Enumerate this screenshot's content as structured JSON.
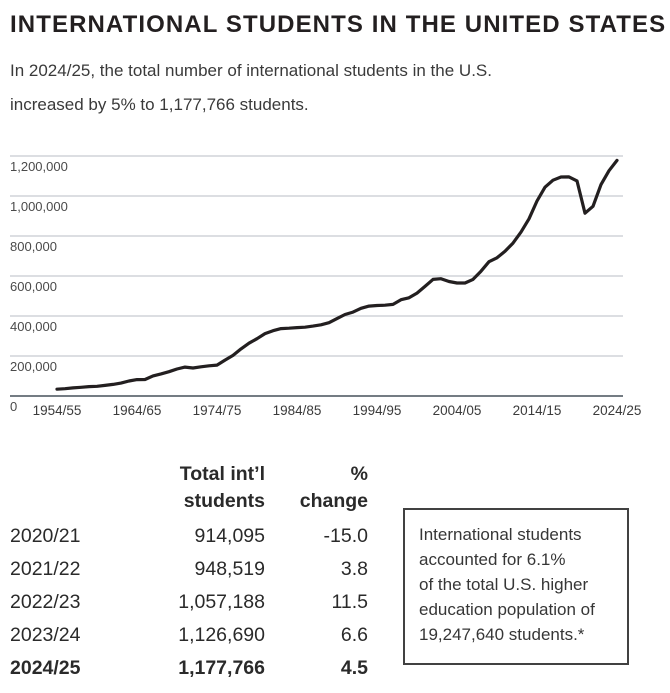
{
  "title": "INTERNATIONAL STUDENTS IN THE UNITED STATES",
  "subtitle": {
    "line1": "In 2024/25, the total number of international students in the U.S.",
    "line2": "increased by 5% to 1,177,766 students."
  },
  "colors": {
    "line": "#231f20",
    "grid": "#c6cbd1",
    "axis": "#47505a",
    "tick": "#4a4a4a",
    "xtick": "#3b3b3b"
  },
  "chart_data": {
    "type": "line",
    "title": "",
    "xlabel": "",
    "ylabel": "",
    "grid": true,
    "legend": false,
    "ylim": [
      0,
      1200000
    ],
    "ytick_interval": 200000,
    "ytick_labels": [
      "0",
      "200,000",
      "400,000",
      "600,000",
      "800,000",
      "1,000,000",
      "1,200,000"
    ],
    "xtick_labels": [
      "1954/55",
      "1964/65",
      "1974/75",
      "1984/85",
      "1994/95",
      "2004/05",
      "2014/15",
      "2024/25"
    ],
    "x_start_year": 1954,
    "x_step_years": 1,
    "series": [
      {
        "name": "Total international students",
        "values": [
          34232,
          36494,
          40666,
          43391,
          47245,
          48486,
          53107,
          58086,
          64705,
          74814,
          82045,
          82709,
          100262,
          110315,
          121362,
          134959,
          144708,
          140126,
          146097,
          151066,
          154580,
          179344,
          203068,
          235509,
          263940,
          286343,
          311882,
          326299,
          336985,
          338894,
          342113,
          343777,
          349609,
          356187,
          366354,
          386851,
          407529,
          419585,
          438618,
          449749,
          452635,
          453787,
          457984,
          481280,
          490933,
          514723,
          547867,
          582996,
          586323,
          572509,
          565039,
          564766,
          582984,
          623805,
          671616,
          690923,
          723277,
          764495,
          819644,
          886052,
          974926,
          1043839,
          1078822,
          1094792,
          1095299,
          1075496,
          914095,
          948519,
          1057188,
          1126690,
          1177766
        ]
      }
    ]
  },
  "table": {
    "headers": {
      "total": [
        "Total int’l",
        "students"
      ],
      "change": [
        "%",
        "change"
      ]
    },
    "rows": [
      {
        "year": "2020/21",
        "total": "914,095",
        "change": "-15.0",
        "bold": false
      },
      {
        "year": "2021/22",
        "total": "948,519",
        "change": "3.8",
        "bold": false
      },
      {
        "year": "2022/23",
        "total": "1,057,188",
        "change": "11.5",
        "bold": false
      },
      {
        "year": "2023/24",
        "total": "1,126,690",
        "change": "6.6",
        "bold": false
      },
      {
        "year": "2024/25",
        "total": "1,177,766",
        "change": "4.5",
        "bold": true
      }
    ]
  },
  "callout": {
    "lines": [
      "International students",
      "accounted for 6.1%",
      "of the total U.S. higher",
      "education population of",
      "19,247,640 students.*"
    ]
  }
}
